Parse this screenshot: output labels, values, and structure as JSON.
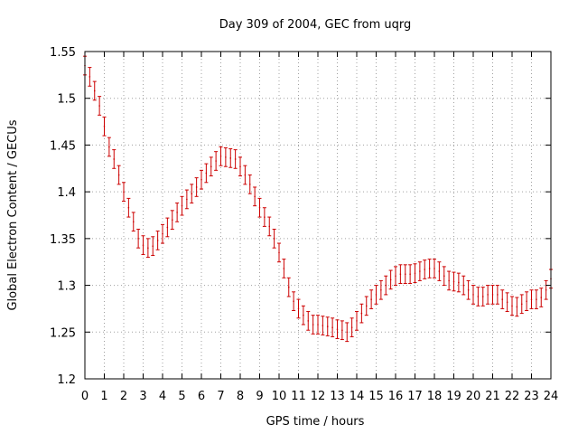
{
  "chart_data": {
    "type": "scatter",
    "title": "Day 309 of 2004, GEC from uqrg",
    "xlabel": "GPS time / hours",
    "ylabel": "Global Electron Content / GECUs",
    "xlim": [
      0,
      24
    ],
    "ylim": [
      1.2,
      1.55
    ],
    "xticks": [
      "0",
      "1",
      "2",
      "3",
      "4",
      "5",
      "6",
      "7",
      "8",
      "9",
      "10",
      "11",
      "12",
      "13",
      "14",
      "15",
      "16",
      "17",
      "18",
      "19",
      "20",
      "21",
      "22",
      "23",
      "24"
    ],
    "yticks": [
      "1.2",
      "1.25",
      "1.3",
      "1.35",
      "1.4",
      "1.45",
      "1.5",
      "1.55"
    ],
    "grid": true,
    "legend": "none",
    "series": [
      {
        "color": "#cc0000",
        "error": 0.01,
        "x": [
          0.0,
          0.25,
          0.5,
          0.75,
          1.0,
          1.25,
          1.5,
          1.75,
          2.0,
          2.25,
          2.5,
          2.75,
          3.0,
          3.25,
          3.5,
          3.75,
          4.0,
          4.25,
          4.5,
          4.75,
          5.0,
          5.25,
          5.5,
          5.75,
          6.0,
          6.25,
          6.5,
          6.75,
          7.0,
          7.25,
          7.5,
          7.75,
          8.0,
          8.25,
          8.5,
          8.75,
          9.0,
          9.25,
          9.5,
          9.75,
          10.0,
          10.25,
          10.5,
          10.75,
          11.0,
          11.25,
          11.5,
          11.75,
          12.0,
          12.25,
          12.5,
          12.75,
          13.0,
          13.25,
          13.5,
          13.75,
          14.0,
          14.25,
          14.5,
          14.75,
          15.0,
          15.25,
          15.5,
          15.75,
          16.0,
          16.25,
          16.5,
          16.75,
          17.0,
          17.25,
          17.5,
          17.75,
          18.0,
          18.25,
          18.5,
          18.75,
          19.0,
          19.25,
          19.5,
          19.75,
          20.0,
          20.25,
          20.5,
          20.75,
          21.0,
          21.25,
          21.5,
          21.75,
          22.0,
          22.25,
          22.5,
          22.75,
          23.0,
          23.25,
          23.5,
          23.75,
          24.0
        ],
        "y": [
          1.535,
          1.523,
          1.508,
          1.492,
          1.47,
          1.448,
          1.435,
          1.418,
          1.4,
          1.383,
          1.368,
          1.35,
          1.343,
          1.34,
          1.342,
          1.348,
          1.355,
          1.362,
          1.37,
          1.378,
          1.385,
          1.392,
          1.398,
          1.405,
          1.413,
          1.42,
          1.427,
          1.433,
          1.438,
          1.437,
          1.436,
          1.435,
          1.427,
          1.418,
          1.408,
          1.395,
          1.383,
          1.373,
          1.363,
          1.35,
          1.335,
          1.318,
          1.298,
          1.283,
          1.275,
          1.268,
          1.262,
          1.258,
          1.258,
          1.257,
          1.256,
          1.255,
          1.253,
          1.252,
          1.25,
          1.255,
          1.262,
          1.27,
          1.278,
          1.285,
          1.29,
          1.295,
          1.3,
          1.306,
          1.31,
          1.312,
          1.312,
          1.312,
          1.313,
          1.315,
          1.317,
          1.318,
          1.318,
          1.315,
          1.31,
          1.305,
          1.304,
          1.303,
          1.3,
          1.295,
          1.29,
          1.288,
          1.288,
          1.29,
          1.29,
          1.29,
          1.285,
          1.282,
          1.278,
          1.277,
          1.28,
          1.283,
          1.285,
          1.285,
          1.287,
          1.295,
          1.307
        ]
      }
    ]
  }
}
